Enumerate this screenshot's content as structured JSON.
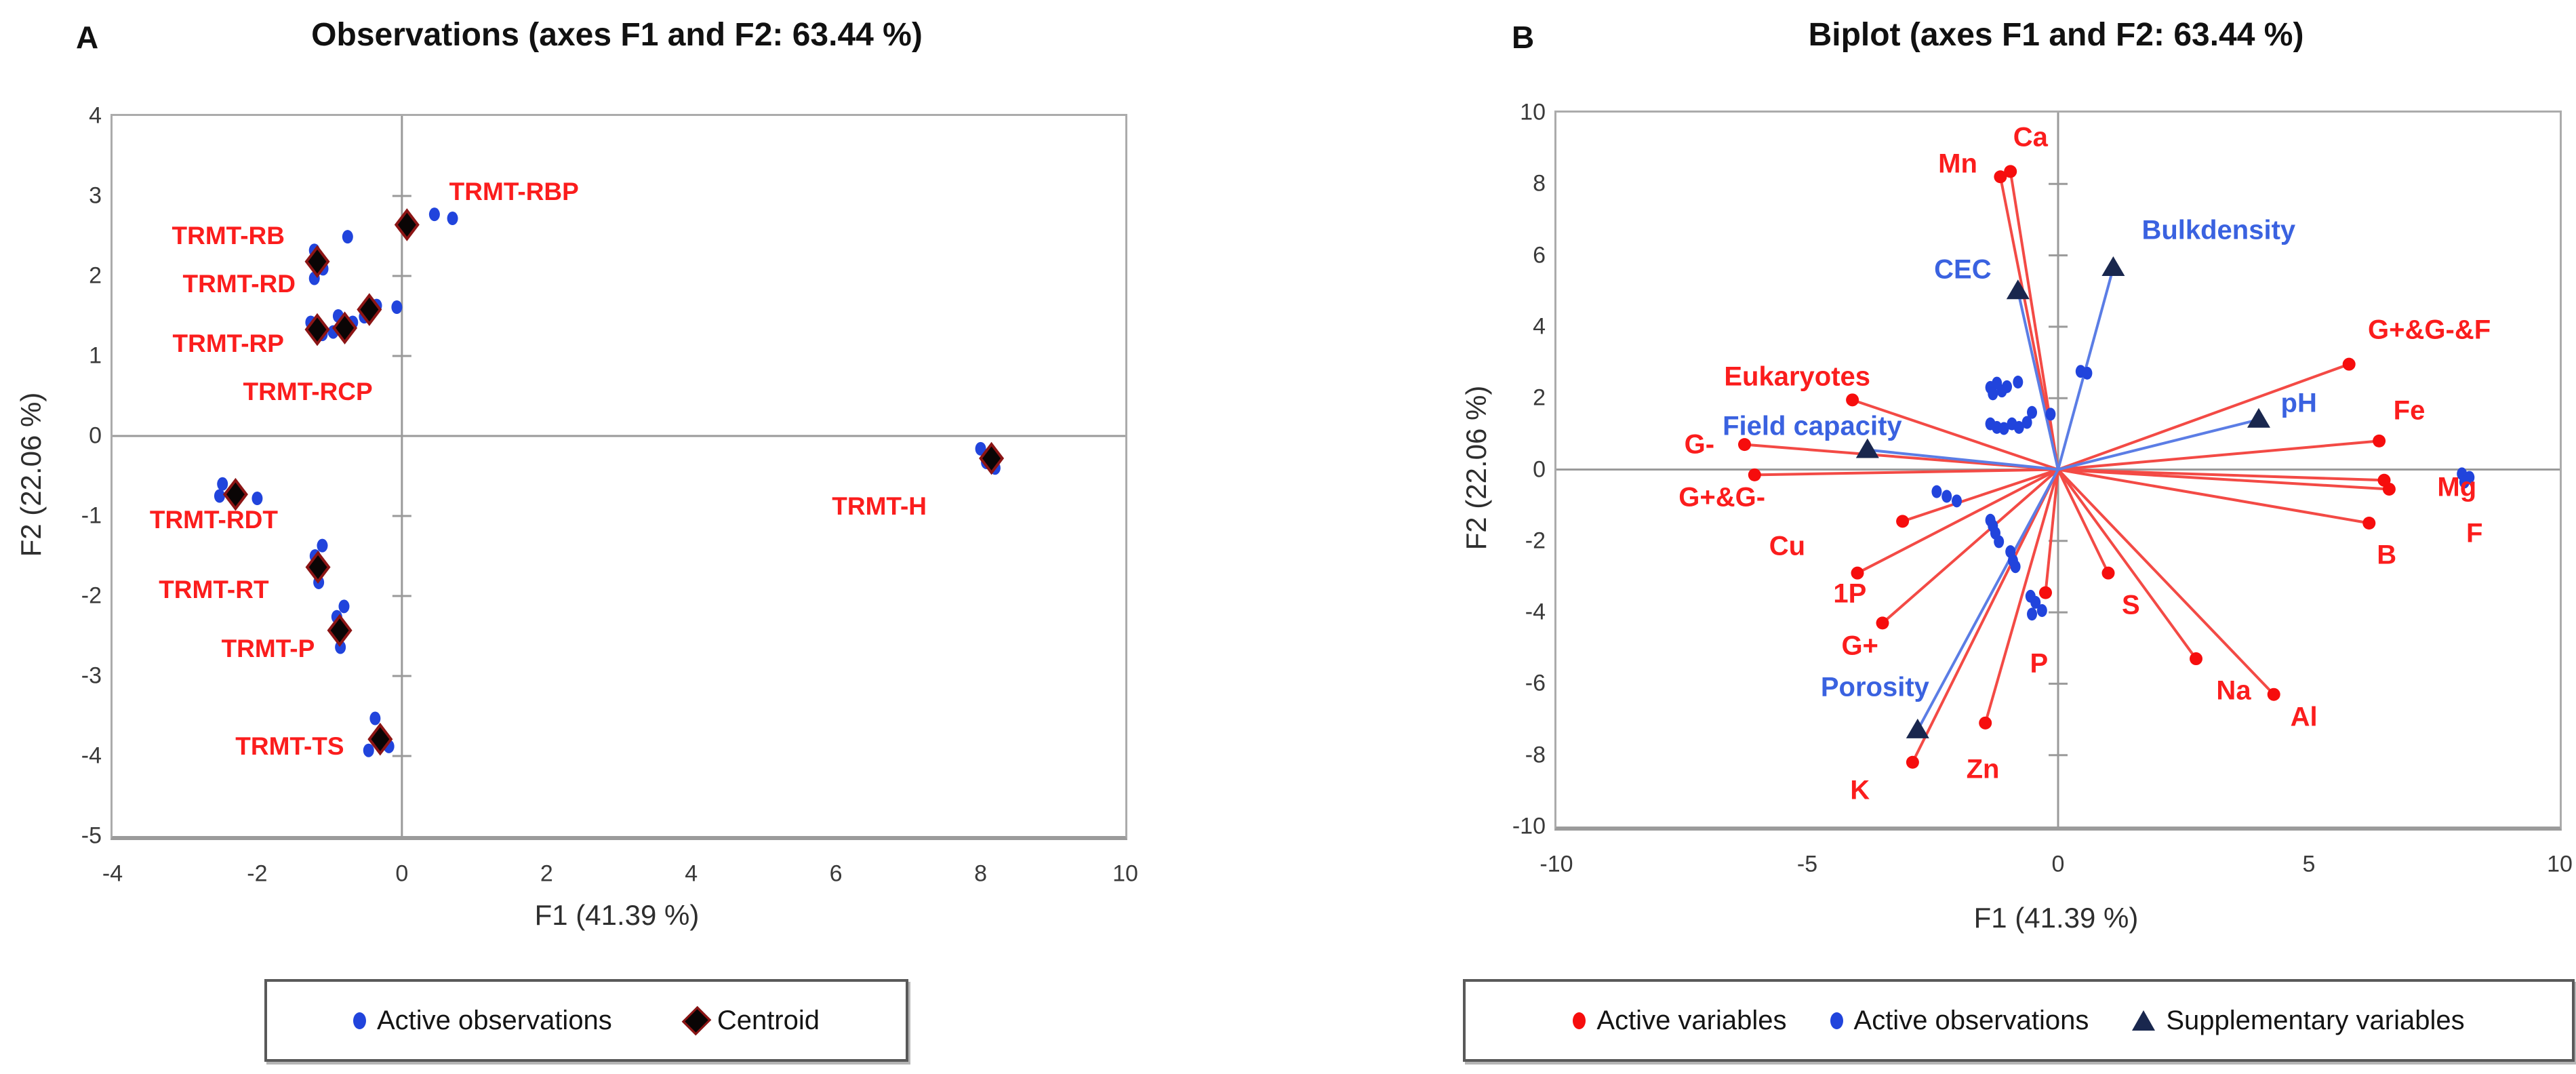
{
  "colors": {
    "active_variable": "#f60d0d",
    "active_variable_line": "#f34a45",
    "active_observation": "#2144dc",
    "supplementary": "#19274e",
    "supplementary_line": "#5b7de5",
    "supplementary_label": "#3a62e0",
    "red_label": "#fb1d1d",
    "centroid_fill": "#0a0505",
    "centroid_stroke": "#8c1515",
    "axis_gray": "#9a9a9a"
  },
  "chart_data": [
    {
      "type": "scatter",
      "panel_letter": "A",
      "title": "Observations (axes F1 and F2: 63.44 %)",
      "xlabel": "F1 (41.39 %)",
      "ylabel": "F2 (22.06 %)",
      "xlim": [
        -4,
        10
      ],
      "ylim": [
        -5,
        4
      ],
      "xticks": [
        -4,
        -2,
        0,
        2,
        4,
        6,
        8,
        10
      ],
      "yticks": [
        4,
        3,
        2,
        1,
        0,
        -1,
        -2,
        -3,
        -4,
        -5
      ],
      "grid": false,
      "legend_position": "bottom",
      "legend": [
        {
          "marker": "dot-blue",
          "label": "Active observations"
        },
        {
          "marker": "diamond-black",
          "label": "Centroid"
        }
      ],
      "groups": [
        {
          "name": "TRMT-RBP",
          "label_pos": [
            1.55,
            3.05
          ],
          "centroid": [
            0.07,
            2.64
          ],
          "points": [
            [
              0.45,
              2.77
            ],
            [
              0.7,
              2.72
            ]
          ]
        },
        {
          "name": "TRMT-RB",
          "label_pos": [
            -2.4,
            2.5
          ],
          "centroid": [
            -1.17,
            2.18
          ],
          "points": [
            [
              -0.75,
              2.49
            ],
            [
              -1.21,
              2.32
            ],
            [
              -1.09,
              2.09
            ]
          ]
        },
        {
          "name": "TRMT-RD",
          "label_pos": [
            -2.25,
            1.9
          ],
          "centroid": [
            -1.17,
            1.33
          ],
          "points": [
            [
              -1.21,
              1.97
            ],
            [
              -1.26,
              1.42
            ],
            [
              -1.1,
              1.27
            ]
          ]
        },
        {
          "name": "TRMT-RP",
          "label_pos": [
            -2.4,
            1.15
          ],
          "centroid": [
            -0.79,
            1.35
          ],
          "points": [
            [
              -0.88,
              1.5
            ],
            [
              -0.95,
              1.3
            ],
            [
              -0.68,
              1.42
            ]
          ]
        },
        {
          "name": "TRMT-RCP",
          "label_pos": [
            -1.3,
            0.55
          ],
          "centroid": [
            -0.45,
            1.58
          ],
          "points": [
            [
              -0.07,
              1.61
            ],
            [
              -0.52,
              1.49
            ],
            [
              -0.35,
              1.63
            ]
          ]
        },
        {
          "name": "TRMT-RDT",
          "label_pos": [
            -2.6,
            -1.05
          ],
          "centroid": [
            -2.3,
            -0.73
          ],
          "points": [
            [
              -2.48,
              -0.6
            ],
            [
              -2.52,
              -0.75
            ],
            [
              -2.0,
              -0.78
            ]
          ]
        },
        {
          "name": "TRMT-RT",
          "label_pos": [
            -2.6,
            -1.92
          ],
          "centroid": [
            -1.16,
            -1.64
          ],
          "points": [
            [
              -1.1,
              -1.37
            ],
            [
              -1.2,
              -1.5
            ],
            [
              -1.15,
              -1.83
            ]
          ]
        },
        {
          "name": "TRMT-P",
          "label_pos": [
            -1.85,
            -2.66
          ],
          "centroid": [
            -0.86,
            -2.43
          ],
          "points": [
            [
              -0.8,
              -2.13
            ],
            [
              -0.9,
              -2.26
            ],
            [
              -0.85,
              -2.64
            ]
          ]
        },
        {
          "name": "TRMT-TS",
          "label_pos": [
            -1.55,
            -3.88
          ],
          "centroid": [
            -0.3,
            -3.79
          ],
          "points": [
            [
              -0.37,
              -3.53
            ],
            [
              -0.46,
              -3.93
            ],
            [
              -0.18,
              -3.88
            ]
          ]
        },
        {
          "name": "TRMT-H",
          "label_pos": [
            6.6,
            -0.88
          ],
          "centroid": [
            8.15,
            -0.28
          ],
          "points": [
            [
              8.0,
              -0.16
            ],
            [
              8.2,
              -0.4
            ],
            [
              8.08,
              -0.33
            ]
          ]
        }
      ]
    },
    {
      "type": "biplot",
      "panel_letter": "B",
      "title": "Biplot (axes F1 and F2: 63.44 %)",
      "xlabel": "F1 (41.39 %)",
      "ylabel": "F2 (22.06 %)",
      "xlim": [
        -10,
        10
      ],
      "ylim": [
        -10,
        10
      ],
      "xticks": [
        -10,
        -5,
        0,
        5,
        10
      ],
      "yticks": [
        10,
        8,
        6,
        4,
        2,
        0,
        -2,
        -4,
        -6,
        -8,
        -10
      ],
      "grid": false,
      "legend_position": "bottom",
      "legend": [
        {
          "marker": "dot-red",
          "label": "Active variables"
        },
        {
          "marker": "dot-blue",
          "label": "Active observations"
        },
        {
          "marker": "triangle-navy",
          "label": "Supplementary variables"
        }
      ],
      "active_variables": [
        {
          "name": "Ca",
          "end": [
            -0.95,
            8.35
          ],
          "label_pos": [
            -0.55,
            9.3
          ]
        },
        {
          "name": "Mn",
          "end": [
            -1.15,
            8.2
          ],
          "label_pos": [
            -2.0,
            8.55
          ]
        },
        {
          "name": "Eukaryotes",
          "end": [
            -4.1,
            1.95
          ],
          "label_pos": [
            -5.2,
            2.6
          ]
        },
        {
          "name": "G-",
          "end": [
            -6.25,
            0.7
          ],
          "label_pos": [
            -7.15,
            0.7
          ]
        },
        {
          "name": "G+&G-",
          "end": [
            -6.05,
            -0.15
          ],
          "label_pos": [
            -6.7,
            -0.78
          ]
        },
        {
          "name": "Cu",
          "end": [
            -3.1,
            -1.45
          ],
          "label_pos": [
            -5.4,
            -2.15
          ]
        },
        {
          "name": "1P",
          "end": [
            -4.0,
            -2.9
          ],
          "label_pos": [
            -4.15,
            -3.48
          ]
        },
        {
          "name": "G+",
          "end": [
            -3.5,
            -4.3
          ],
          "label_pos": [
            -3.95,
            -4.95
          ]
        },
        {
          "name": "K",
          "end": [
            -2.9,
            -8.2
          ],
          "label_pos": [
            -3.95,
            -9.0
          ]
        },
        {
          "name": "Zn",
          "end": [
            -1.45,
            -7.1
          ],
          "label_pos": [
            -1.5,
            -8.4
          ]
        },
        {
          "name": "P",
          "end": [
            -0.25,
            -3.45
          ],
          "label_pos": [
            -0.38,
            -5.45
          ]
        },
        {
          "name": "S",
          "end": [
            1.0,
            -2.9
          ],
          "label_pos": [
            1.45,
            -3.8
          ]
        },
        {
          "name": "Na",
          "end": [
            2.75,
            -5.3
          ],
          "label_pos": [
            3.5,
            -6.2
          ]
        },
        {
          "name": "Al",
          "end": [
            4.3,
            -6.3
          ],
          "label_pos": [
            4.9,
            -6.95
          ]
        },
        {
          "name": "B",
          "end": [
            6.2,
            -1.5
          ],
          "label_pos": [
            6.55,
            -2.4
          ]
        },
        {
          "name": "F",
          "end": [
            6.6,
            -0.55
          ],
          "label_pos": [
            8.3,
            -1.8
          ]
        },
        {
          "name": "Mg",
          "end": [
            6.5,
            -0.3
          ],
          "label_pos": [
            7.95,
            -0.5
          ]
        },
        {
          "name": "Fe",
          "end": [
            6.4,
            0.8
          ],
          "label_pos": [
            7.0,
            1.65
          ]
        },
        {
          "name": "G+&G-&F",
          "end": [
            5.8,
            2.95
          ],
          "label_pos": [
            7.4,
            3.9
          ]
        }
      ],
      "supplementary_variables": [
        {
          "name": "CEC",
          "end": [
            -0.8,
            5.0
          ],
          "label_pos": [
            -1.9,
            5.6
          ]
        },
        {
          "name": "Bulkdensity",
          "end": [
            1.1,
            5.65
          ],
          "label_pos": [
            3.2,
            6.7
          ]
        },
        {
          "name": "Field capacity",
          "end": [
            -3.8,
            0.55
          ],
          "label_pos": [
            -4.9,
            1.2
          ]
        },
        {
          "name": "pH",
          "end": [
            4.0,
            1.4
          ],
          "label_pos": [
            4.8,
            1.85
          ]
        },
        {
          "name": "Porosity",
          "end": [
            -2.8,
            -7.3
          ],
          "label_pos": [
            -3.65,
            -6.1
          ]
        }
      ],
      "observations": [
        [
          -1.35,
          2.3
        ],
        [
          -1.22,
          2.42
        ],
        [
          -1.3,
          2.12
        ],
        [
          -1.12,
          2.2
        ],
        [
          -1.02,
          2.32
        ],
        [
          -0.8,
          2.45
        ],
        [
          0.45,
          2.75
        ],
        [
          0.58,
          2.7
        ],
        [
          -0.52,
          1.6
        ],
        [
          -0.15,
          1.55
        ],
        [
          -1.35,
          1.28
        ],
        [
          -1.22,
          1.18
        ],
        [
          -1.08,
          1.15
        ],
        [
          -0.92,
          1.28
        ],
        [
          -0.78,
          1.18
        ],
        [
          -0.62,
          1.32
        ],
        [
          -2.42,
          -0.62
        ],
        [
          -2.22,
          -0.75
        ],
        [
          -2.02,
          -0.88
        ],
        [
          -1.35,
          -1.42
        ],
        [
          -1.3,
          -1.58
        ],
        [
          -1.25,
          -1.78
        ],
        [
          -1.18,
          -2.02
        ],
        [
          -0.95,
          -2.3
        ],
        [
          -0.9,
          -2.55
        ],
        [
          -0.85,
          -2.72
        ],
        [
          -0.55,
          -3.55
        ],
        [
          -0.45,
          -3.72
        ],
        [
          -0.32,
          -3.95
        ],
        [
          -0.52,
          -4.05
        ],
        [
          8.05,
          -0.12
        ],
        [
          8.2,
          -0.22
        ],
        [
          8.1,
          -0.35
        ]
      ]
    }
  ]
}
